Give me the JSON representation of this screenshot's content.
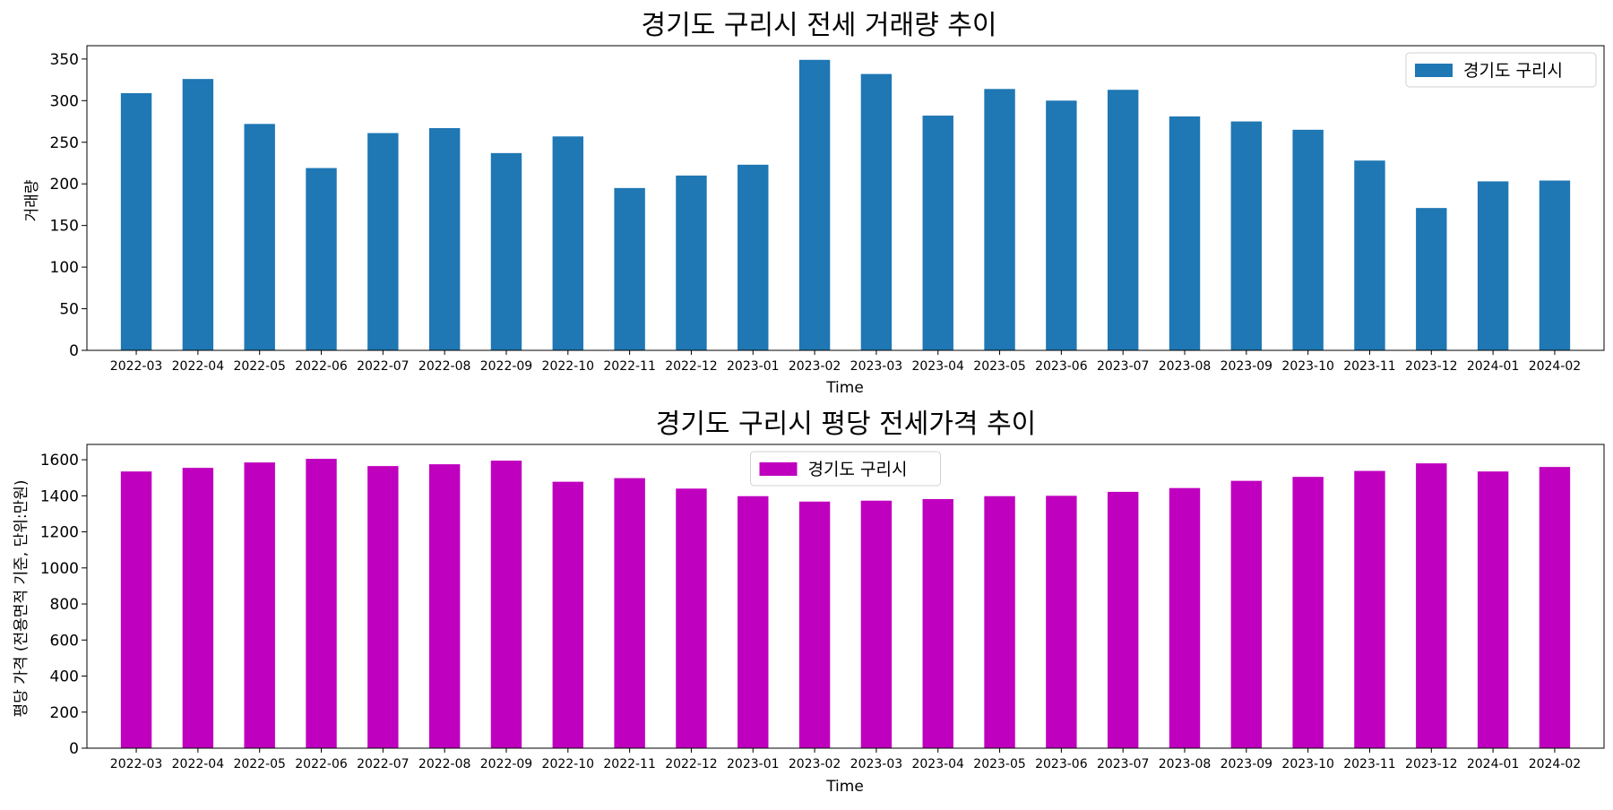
{
  "chart_data": [
    {
      "type": "bar",
      "title": "경기도 구리시 전세 거래량 추이",
      "xlabel": "Time",
      "ylabel": "거래량",
      "categories": [
        "2022-03",
        "2022-04",
        "2022-05",
        "2022-06",
        "2022-07",
        "2022-08",
        "2022-09",
        "2022-10",
        "2022-11",
        "2022-12",
        "2023-01",
        "2023-02",
        "2023-03",
        "2023-04",
        "2023-05",
        "2023-06",
        "2023-07",
        "2023-08",
        "2023-09",
        "2023-10",
        "2023-11",
        "2023-12",
        "2024-01",
        "2024-02"
      ],
      "series": [
        {
          "name": "경기도 구리시",
          "color": "#1f77b4",
          "values": [
            309,
            326,
            272,
            219,
            261,
            267,
            237,
            257,
            195,
            210,
            223,
            349,
            332,
            282,
            314,
            300,
            313,
            281,
            275,
            265,
            228,
            171,
            203,
            204
          ]
        }
      ],
      "ylim": [
        0,
        366
      ],
      "yticks": [
        0,
        50,
        100,
        150,
        200,
        250,
        300,
        350
      ],
      "legend": "upper right"
    },
    {
      "type": "bar",
      "title": "경기도 구리시 평당 전세가격 추이",
      "xlabel": "Time",
      "ylabel": "평당 가격 (전용면적 기준, 단위:만원)",
      "categories": [
        "2022-03",
        "2022-04",
        "2022-05",
        "2022-06",
        "2022-07",
        "2022-08",
        "2022-09",
        "2022-10",
        "2022-11",
        "2022-12",
        "2023-01",
        "2023-02",
        "2023-03",
        "2023-04",
        "2023-05",
        "2023-06",
        "2023-07",
        "2023-08",
        "2023-09",
        "2023-10",
        "2023-11",
        "2023-12",
        "2024-01",
        "2024-02"
      ],
      "series": [
        {
          "name": "경기도 구리시",
          "color": "#bf00bf",
          "values": [
            1535,
            1555,
            1585,
            1605,
            1565,
            1575,
            1595,
            1478,
            1498,
            1440,
            1398,
            1368,
            1373,
            1382,
            1398,
            1400,
            1422,
            1443,
            1483,
            1505,
            1538,
            1580,
            1535,
            1560
          ]
        }
      ],
      "ylim": [
        0,
        1685
      ],
      "yticks": [
        0,
        200,
        400,
        600,
        800,
        1000,
        1200,
        1400,
        1600
      ],
      "legend": "upper center"
    }
  ]
}
